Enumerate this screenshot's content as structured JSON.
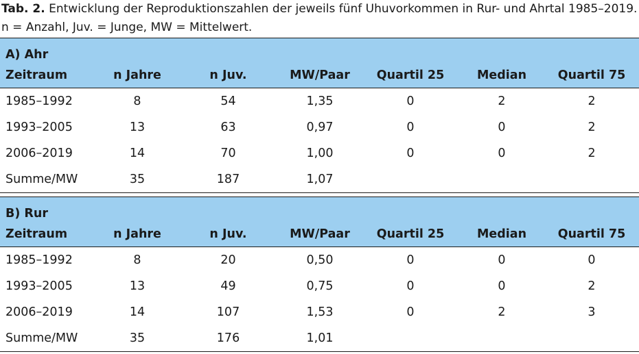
{
  "caption": {
    "label": "Tab. 2.",
    "text": " Entwicklung der Reproduktionszahlen der jeweils fünf Uhuvorkommen in Rur- und Ahrtal 1985–2019.",
    "line2": "n = Anzahl, Juv. = Junge, MW = Mittelwert."
  },
  "columns": [
    "Zeitraum",
    "n Jahre",
    "n Juv.",
    "MW/Paar",
    "Quartil 25",
    "Median",
    "Quartil 75"
  ],
  "sections": [
    {
      "title": "A) Ahr",
      "rows": [
        [
          "1985–1992",
          "8",
          "54",
          "1,35",
          "0",
          "2",
          "2"
        ],
        [
          "1993–2005",
          "13",
          "63",
          "0,97",
          "0",
          "0",
          "2"
        ],
        [
          "2006–2019",
          "14",
          "70",
          "1,00",
          "0",
          "0",
          "2"
        ],
        [
          "Summe/MW",
          "35",
          "187",
          "1,07",
          "",
          "",
          ""
        ]
      ]
    },
    {
      "title": "B) Rur",
      "rows": [
        [
          "1985–1992",
          "8",
          "20",
          "0,50",
          "0",
          "0",
          "0"
        ],
        [
          "1993–2005",
          "13",
          "49",
          "0,75",
          "0",
          "0",
          "2"
        ],
        [
          "2006–2019",
          "14",
          "107",
          "1,53",
          "0",
          "2",
          "3"
        ],
        [
          "Summe/MW",
          "35",
          "176",
          "1,01",
          "",
          "",
          ""
        ]
      ]
    }
  ]
}
